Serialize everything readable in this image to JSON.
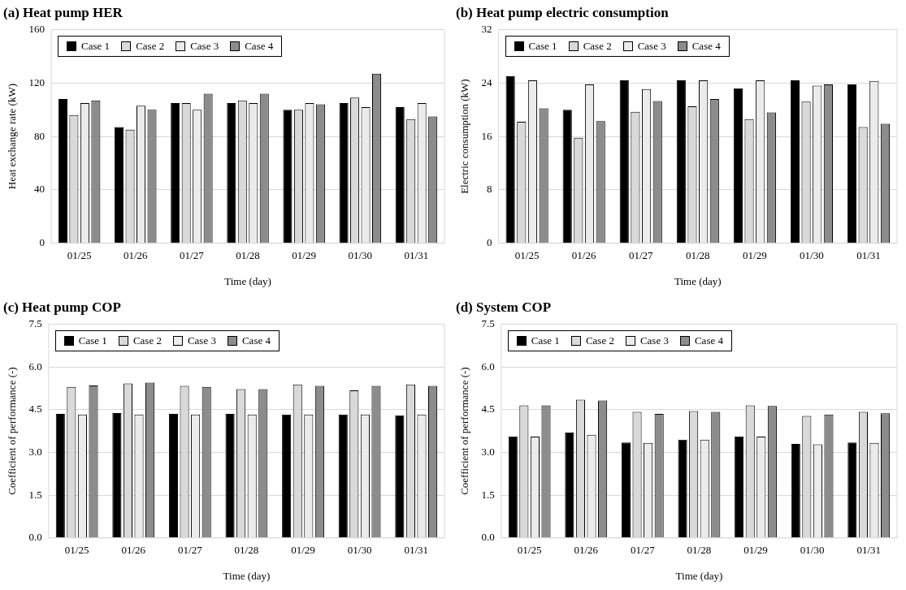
{
  "chart_data": [
    {
      "type": "bar",
      "title": "(a) Heat pump HER",
      "xlabel": "Time (day)",
      "ylabel": "Heat exchange rate (kW)",
      "categories": [
        "01/25",
        "01/26",
        "01/27",
        "01/28",
        "01/29",
        "01/30",
        "01/31"
      ],
      "series": [
        {
          "name": "Case 1",
          "color": "#000000",
          "values": [
            108,
            87,
            105,
            105,
            100,
            105,
            102
          ]
        },
        {
          "name": "Case 2",
          "color": "#d9d9d9",
          "values": [
            96,
            85,
            105,
            107,
            100,
            109,
            93
          ]
        },
        {
          "name": "Case 3",
          "color": "#ebebeb",
          "values": [
            105,
            103,
            100,
            105,
            105,
            102,
            105
          ]
        },
        {
          "name": "Case 4",
          "color": "#8c8c8c",
          "values": [
            107,
            100,
            112,
            112,
            104,
            127,
            95
          ]
        }
      ],
      "ylim": [
        0,
        160
      ],
      "yticks": [
        0,
        40,
        80,
        120,
        160
      ],
      "grid": "y",
      "legend": "top left"
    },
    {
      "type": "bar",
      "title": "(b) Heat pump electric consumption",
      "xlabel": "Time (day)",
      "ylabel": "Electric consumption (kW)",
      "categories": [
        "01/25",
        "01/26",
        "01/27",
        "01/28",
        "01/29",
        "01/30",
        "01/31"
      ],
      "series": [
        {
          "name": "Case 1",
          "color": "#000000",
          "values": [
            25,
            20,
            24.4,
            24.4,
            23.2,
            24.4,
            23.8
          ]
        },
        {
          "name": "Case 2",
          "color": "#d9d9d9",
          "values": [
            18.2,
            15.8,
            19.7,
            20.5,
            18.6,
            21.2,
            17.4
          ]
        },
        {
          "name": "Case 3",
          "color": "#ebebeb",
          "values": [
            24.4,
            23.8,
            23.1,
            24.4,
            24.4,
            23.6,
            24.3
          ]
        },
        {
          "name": "Case 4",
          "color": "#8c8c8c",
          "values": [
            20.2,
            18.3,
            21.3,
            21.6,
            19.6,
            23.8,
            17.9
          ]
        }
      ],
      "ylim": [
        0,
        32
      ],
      "yticks": [
        0,
        8,
        16,
        24,
        32
      ],
      "grid": "y",
      "legend": "top left"
    },
    {
      "type": "bar",
      "title": "(c) Heat pump COP",
      "xlabel": "Time (day)",
      "ylabel": "Coefficient of performance (-)",
      "categories": [
        "01/25",
        "01/26",
        "01/27",
        "01/28",
        "01/29",
        "01/30",
        "01/31"
      ],
      "series": [
        {
          "name": "Case 1",
          "color": "#000000",
          "values": [
            4.35,
            4.38,
            4.35,
            4.35,
            4.33,
            4.33,
            4.3
          ]
        },
        {
          "name": "Case 2",
          "color": "#d9d9d9",
          "values": [
            5.3,
            5.42,
            5.33,
            5.22,
            5.38,
            5.18,
            5.38
          ]
        },
        {
          "name": "Case 3",
          "color": "#ebebeb",
          "values": [
            4.33,
            4.33,
            4.33,
            4.33,
            4.33,
            4.33,
            4.33
          ]
        },
        {
          "name": "Case 4",
          "color": "#8c8c8c",
          "values": [
            5.35,
            5.45,
            5.3,
            5.22,
            5.33,
            5.33,
            5.33
          ]
        }
      ],
      "ylim": [
        0,
        7.5
      ],
      "yticks": [
        {
          "value": 0,
          "label": "0.0"
        },
        {
          "value": 1.5,
          "label": "1.5"
        },
        {
          "value": 3,
          "label": "3.0"
        },
        {
          "value": 4.5,
          "label": "4.5"
        },
        {
          "value": 6,
          "label": "6.0"
        },
        {
          "value": 7.5,
          "label": "7.5"
        }
      ],
      "grid": "y",
      "legend": "top left"
    },
    {
      "type": "bar",
      "title": "(d) System COP",
      "xlabel": "Time (day)",
      "ylabel": "Coefficient of performance (-)",
      "categories": [
        "01/25",
        "01/26",
        "01/27",
        "01/28",
        "01/29",
        "01/30",
        "01/31"
      ],
      "series": [
        {
          "name": "Case 1",
          "color": "#000000",
          "values": [
            3.56,
            3.7,
            3.35,
            3.45,
            3.56,
            3.3,
            3.35
          ]
        },
        {
          "name": "Case 2",
          "color": "#d9d9d9",
          "values": [
            4.65,
            4.85,
            4.42,
            4.45,
            4.65,
            4.28,
            4.42
          ]
        },
        {
          "name": "Case 3",
          "color": "#ebebeb",
          "values": [
            3.55,
            3.62,
            3.33,
            3.45,
            3.55,
            3.28,
            3.33
          ]
        },
        {
          "name": "Case 4",
          "color": "#8c8c8c",
          "values": [
            4.65,
            4.82,
            4.35,
            4.42,
            4.63,
            4.33,
            4.37
          ]
        }
      ],
      "ylim": [
        0,
        7.5
      ],
      "yticks": [
        {
          "value": 0,
          "label": "0.0"
        },
        {
          "value": 1.5,
          "label": "1.5"
        },
        {
          "value": 3,
          "label": "3.0"
        },
        {
          "value": 4.5,
          "label": "4.5"
        },
        {
          "value": 6,
          "label": "6.0"
        },
        {
          "value": 7.5,
          "label": "7.5"
        }
      ],
      "grid": "y",
      "legend": "top left"
    }
  ]
}
